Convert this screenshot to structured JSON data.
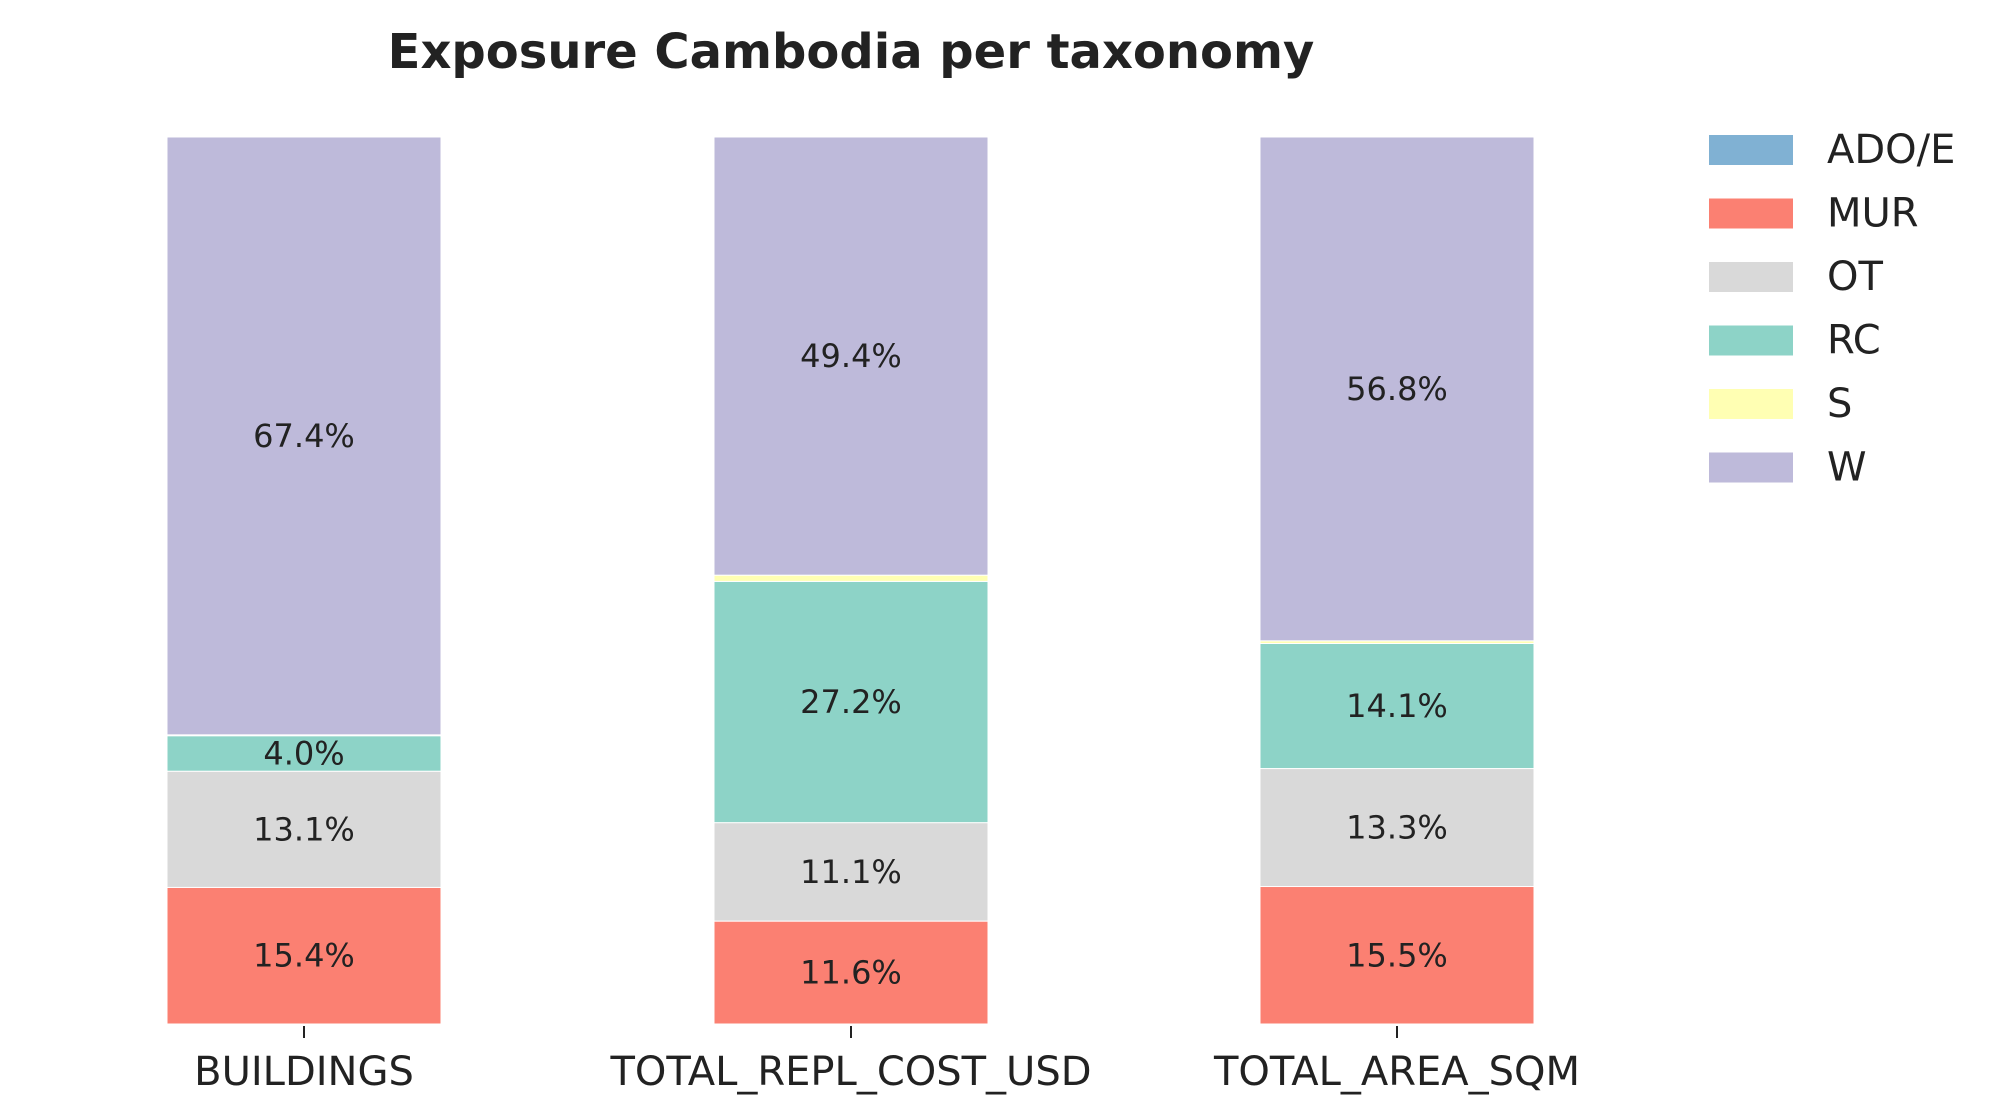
{
  "chart_data": {
    "type": "bar",
    "stacked": true,
    "title": "Exposure Cambodia per taxonomy",
    "xlabel": "",
    "ylabel": "",
    "ylim": [
      0,
      100
    ],
    "categories": [
      "BUILDINGS",
      "TOTAL_REPL_COST_USD",
      "TOTAL_AREA_SQM"
    ],
    "series": [
      {
        "name": "ADO/E",
        "color": "#80b1d3",
        "values": [
          0.0,
          0.0,
          0.0
        ],
        "labels": [
          "",
          "",
          ""
        ]
      },
      {
        "name": "MUR",
        "color": "#fb8072",
        "values": [
          15.4,
          11.6,
          15.5
        ],
        "labels": [
          "15.4%",
          "11.6%",
          "15.5%"
        ]
      },
      {
        "name": "OT",
        "color": "#d9d9d9",
        "values": [
          13.1,
          11.1,
          13.3
        ],
        "labels": [
          "13.1%",
          "11.1%",
          "13.3%"
        ]
      },
      {
        "name": "RC",
        "color": "#8dd3c7",
        "values": [
          4.0,
          27.2,
          14.1
        ],
        "labels": [
          "4.0%",
          "27.2%",
          "14.1%"
        ]
      },
      {
        "name": "S",
        "color": "#ffffb3",
        "values": [
          0.1,
          0.7,
          0.3
        ],
        "labels": [
          "",
          "",
          ""
        ]
      },
      {
        "name": "W",
        "color": "#bebada",
        "values": [
          67.4,
          49.4,
          56.8
        ],
        "labels": [
          "67.4%",
          "49.4%",
          "56.8%"
        ]
      }
    ],
    "grid": false,
    "legend_position": "top-right"
  }
}
